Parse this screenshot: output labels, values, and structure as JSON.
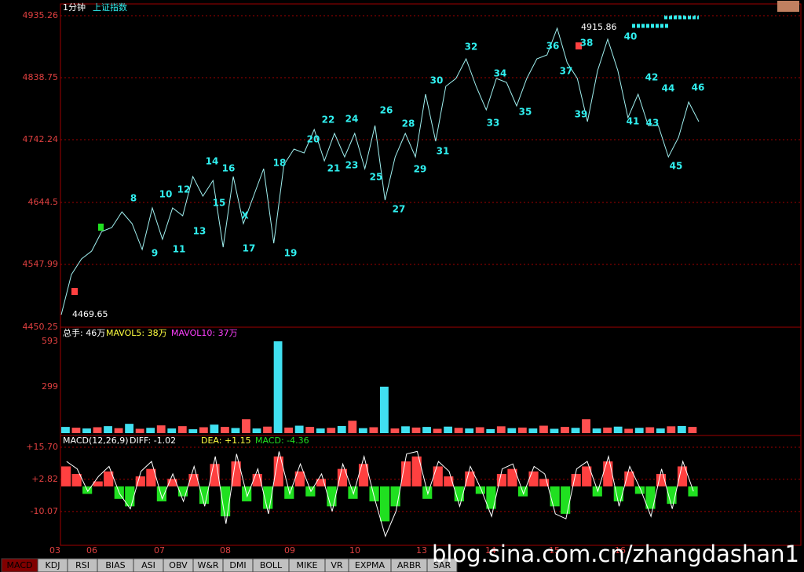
{
  "header": {
    "period": "1分钟",
    "index_name": "上证指数"
  },
  "price": {
    "ylim": [
      4450.25,
      4935.26
    ],
    "yticks": [
      4450.25,
      4547.99,
      4644.5,
      4742.24,
      4838.75,
      4935.26
    ],
    "values": [
      4469.65,
      4532.1,
      4556.5,
      4568.8,
      4599.3,
      4605.4,
      4629.8,
      4611.5,
      4571.2,
      4636.0,
      4587.1,
      4636.0,
      4623.7,
      4684.8,
      4654.3,
      4678.7,
      4574.9,
      4684.8,
      4611.5,
      4654.3,
      4697.0,
      4581.0,
      4703.1,
      4727.6,
      4721.5,
      4758.1,
      4709.2,
      4752.0,
      4715.4,
      4752.0,
      4697.0,
      4764.2,
      4648.2,
      4715.4,
      4752.0,
      4715.4,
      4813.1,
      4739.8,
      4825.3,
      4837.5,
      4868.1,
      4825.3,
      4788.7,
      4837.5,
      4831.4,
      4794.8,
      4837.5,
      4868.1,
      4874.2,
      4915.86,
      4862.0,
      4837.5,
      4770.3,
      4849.7,
      4898.6,
      4849.7,
      4776.4,
      4813.1,
      4764.2,
      4764.2,
      4715.4,
      4745.9,
      4800.9,
      4770.3
    ],
    "low_label": "4469.65",
    "high_label": "4915.86",
    "wave_labels": [
      "8",
      "9",
      "10",
      "11",
      "12",
      "13",
      "14",
      "15",
      "16",
      "X",
      "17",
      "18",
      "19",
      "20",
      "21",
      "22",
      "23",
      "24",
      "25",
      "26",
      "27",
      "28",
      "29",
      "30",
      "31",
      "32",
      "33",
      "34",
      "35",
      "36",
      "37",
      "38",
      "39",
      "40",
      "41",
      "42",
      "43",
      "44",
      "45",
      "46"
    ]
  },
  "volume": {
    "legend": [
      "总手: 46万",
      "MAVOL5: 38万",
      "MAVOL10: 37万"
    ],
    "ylim": [
      0,
      593
    ],
    "yticks": [
      593,
      299
    ],
    "values": [
      40,
      35,
      30,
      38,
      45,
      32,
      60,
      28,
      34,
      50,
      30,
      45,
      25,
      38,
      55,
      40,
      33,
      90,
      30,
      42,
      593,
      36,
      48,
      40,
      30,
      34,
      46,
      80,
      32,
      38,
      300,
      30,
      44,
      36,
      40,
      28,
      42,
      34,
      30,
      38,
      26,
      44,
      32,
      36,
      30,
      48,
      28,
      40,
      34,
      90,
      30,
      36,
      42,
      28,
      34,
      38,
      30,
      44,
      46,
      40
    ]
  },
  "macd": {
    "legend": [
      "MACD(12,26,9)",
      "DIFF: -1.02",
      "DEA: +1.15",
      "MACD: -4.36"
    ],
    "ylim": [
      -23.3,
      20.4
    ],
    "yticks": [
      {
        "value": 15.7,
        "label": "+15.70"
      },
      {
        "value": 2.82,
        "label": "+2.82"
      },
      -10.07
    ],
    "values": [
      8,
      5,
      -3,
      2,
      6,
      -5,
      -8,
      4,
      7,
      -6,
      3,
      -4,
      5,
      -7,
      9,
      -12,
      10,
      -6,
      5,
      -9,
      12,
      -5,
      6,
      -4,
      3,
      -8,
      7,
      -5,
      9,
      -6,
      -14,
      -8,
      10,
      12,
      -5,
      8,
      4,
      -6,
      6,
      -3,
      -9,
      5,
      7,
      -4,
      6,
      3,
      -8,
      -11,
      5,
      8,
      -4,
      10,
      -6,
      6,
      -3,
      -9,
      5,
      -7,
      8,
      -4
    ],
    "diff": [
      10,
      7,
      -2,
      4,
      8,
      -3,
      -9,
      6,
      10,
      -5,
      5,
      -6,
      8,
      -8,
      12,
      -15,
      13,
      -4,
      7,
      -11,
      14,
      -3,
      9,
      -2,
      5,
      -10,
      9,
      -3,
      12,
      -5,
      -20,
      -10,
      13,
      14,
      -3,
      10,
      6,
      -8,
      8,
      -1,
      -12,
      7,
      9,
      -3,
      8,
      5,
      -11,
      -13,
      7,
      10,
      -2,
      12,
      -8,
      8,
      -1,
      -12,
      7,
      -9,
      10,
      -2
    ]
  },
  "x_labels": [
    "03",
    "06",
    "07",
    "08",
    "09",
    "10",
    "13",
    "14",
    "15",
    "16"
  ],
  "tabs": [
    "MACD",
    "KDJ",
    "RSI",
    "BIAS",
    "ASI",
    "OBV",
    "W&R",
    "DMI",
    "BOLL",
    "MIKE",
    "VR",
    "EXPMA",
    "ARBR",
    "SAR"
  ],
  "watermark": "blog.sina.com.cn/zhangdashan1"
}
